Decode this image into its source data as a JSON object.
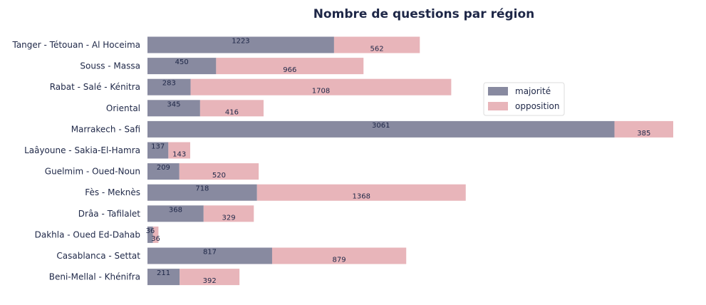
{
  "chart_data": {
    "type": "bar",
    "orientation": "horizontal",
    "stacked": true,
    "title": "Nombre de questions par région",
    "xlabel": "",
    "ylabel": "",
    "categories": [
      "Tanger - Tétouan - Al Hoceima",
      "Souss - Massa",
      "Rabat - Salé - Kénitra",
      "Oriental",
      "Marrakech - Safi",
      "Laâyoune - Sakia-El-Hamra",
      "Guelmim - Oued-Noun",
      "Fès - Meknès",
      "Drâa - Tafilalet",
      "Dakhla - Oued Ed-Dahab",
      "Casablanca - Settat",
      "Beni-Mellal - Khénifra"
    ],
    "series": [
      {
        "name": "majorité",
        "color": "#888aa0",
        "values": [
          1223,
          450,
          283,
          345,
          3061,
          137,
          209,
          718,
          368,
          36,
          817,
          211
        ]
      },
      {
        "name": "opposition",
        "color": "#e8b5ba",
        "values": [
          562,
          966,
          1708,
          416,
          385,
          143,
          520,
          1368,
          329,
          36,
          879,
          392
        ]
      }
    ],
    "xlim": [
      0,
      3446
    ],
    "grid": false,
    "legend_position": "right"
  }
}
